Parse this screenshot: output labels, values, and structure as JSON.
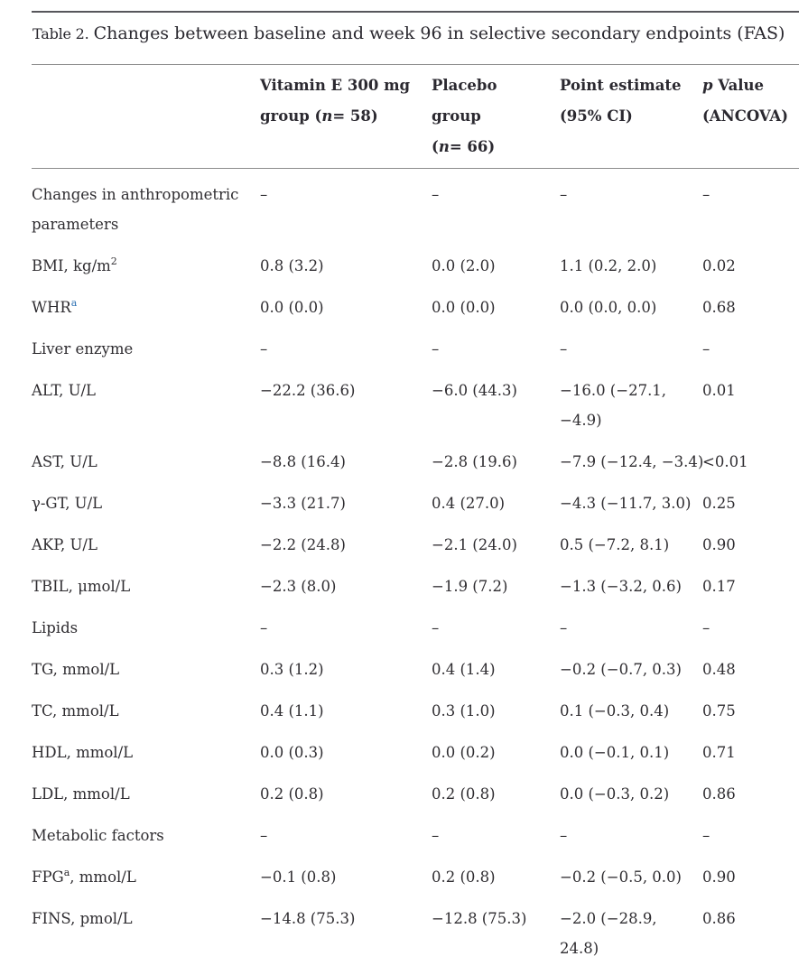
{
  "colors": {
    "text": "#2f2d31",
    "accent_link": "#2d72b4",
    "rule_dark": "#57565b",
    "rule_light": "#8b8b8b"
  },
  "caption": {
    "label": "Table 2.",
    "text": "Changes between baseline and week 96 in selective secondary endpoints (FAS)"
  },
  "header": {
    "columns": [
      {
        "parts": []
      },
      {
        "parts": [
          {
            "text": "Vitamin E 300 mg"
          },
          {
            "br": true
          },
          {
            "text": "group ("
          },
          {
            "text": "n",
            "i": true
          },
          {
            "text": "= 58)"
          }
        ]
      },
      {
        "parts": [
          {
            "text": "Placebo group"
          },
          {
            "br": true
          },
          {
            "text": "("
          },
          {
            "text": "n",
            "i": true
          },
          {
            "text": "= 66)"
          }
        ]
      },
      {
        "parts": [
          {
            "text": "Point estimate"
          },
          {
            "br": true
          },
          {
            "text": "(95% CI)"
          }
        ]
      },
      {
        "parts": [
          {
            "text": "p",
            "i": true
          },
          {
            "text": " Value"
          },
          {
            "br": true
          },
          {
            "text": "(ANCOVA)"
          }
        ]
      }
    ]
  },
  "rows": [
    {
      "label": [
        {
          "text": "Changes in anthropometric"
        },
        {
          "br": true
        },
        {
          "text": "parameters"
        }
      ],
      "cells": [
        "–",
        "–",
        "–",
        "–"
      ]
    },
    {
      "label": [
        {
          "text": "BMI, kg/m"
        },
        {
          "text": "2",
          "sup": true
        }
      ],
      "cells": [
        "0.8 (3.2)",
        "0.0 (2.0)",
        "1.1 (0.2, 2.0)",
        "0.02"
      ]
    },
    {
      "label": [
        {
          "text": "WHR"
        },
        {
          "text": "a",
          "sup": true,
          "accent": true
        }
      ],
      "cells": [
        "0.0 (0.0)",
        "0.0 (0.0)",
        "0.0 (0.0, 0.0)",
        "0.68"
      ]
    },
    {
      "label": [
        {
          "text": "Liver enzyme"
        }
      ],
      "cells": [
        "–",
        "–",
        "–",
        "–"
      ]
    },
    {
      "label": [
        {
          "text": "ALT, U/L"
        }
      ],
      "cells": [
        "−22.2 (36.6)",
        "−6.0 (44.3)",
        [
          "−16.0 (−27.1,",
          "−4.9)"
        ],
        "0.01"
      ]
    },
    {
      "label": [
        {
          "text": "AST, U/L"
        }
      ],
      "cells": [
        "−8.8 (16.4)",
        "−2.8 (19.6)",
        "−7.9 (−12.4, −3.4)",
        "<0.01"
      ]
    },
    {
      "label": [
        {
          "text": "γ-GT, U/L"
        }
      ],
      "cells": [
        "−3.3 (21.7)",
        "0.4 (27.0)",
        "−4.3 (−11.7, 3.0)",
        "0.25"
      ]
    },
    {
      "label": [
        {
          "text": "AKP, U/L"
        }
      ],
      "cells": [
        "−2.2 (24.8)",
        "−2.1 (24.0)",
        "0.5 (−7.2, 8.1)",
        "0.90"
      ]
    },
    {
      "label": [
        {
          "text": "TBIL, μmol/L"
        }
      ],
      "cells": [
        "−2.3 (8.0)",
        "−1.9 (7.2)",
        "−1.3 (−3.2, 0.6)",
        "0.17"
      ]
    },
    {
      "label": [
        {
          "text": "Lipids"
        }
      ],
      "cells": [
        "–",
        "–",
        "–",
        "–"
      ]
    },
    {
      "label": [
        {
          "text": "TG, mmol/L"
        }
      ],
      "cells": [
        "0.3 (1.2)",
        "0.4 (1.4)",
        "−0.2 (−0.7, 0.3)",
        "0.48"
      ]
    },
    {
      "label": [
        {
          "text": "TC, mmol/L"
        }
      ],
      "cells": [
        "0.4 (1.1)",
        "0.3 (1.0)",
        "0.1 (−0.3, 0.4)",
        "0.75"
      ]
    },
    {
      "label": [
        {
          "text": "HDL, mmol/L"
        }
      ],
      "cells": [
        "0.0 (0.3)",
        "0.0 (0.2)",
        "0.0 (−0.1, 0.1)",
        "0.71"
      ]
    },
    {
      "label": [
        {
          "text": "LDL, mmol/L"
        }
      ],
      "cells": [
        "0.2 (0.8)",
        "0.2 (0.8)",
        "0.0 (−0.3, 0.2)",
        "0.86"
      ]
    },
    {
      "label": [
        {
          "text": "Metabolic factors"
        }
      ],
      "cells": [
        "–",
        "–",
        "–",
        "–"
      ]
    },
    {
      "label": [
        {
          "text": "FPG"
        },
        {
          "text": "a",
          "sup": true
        },
        {
          "text": ", mmol/L"
        }
      ],
      "cells": [
        "−0.1 (0.8)",
        "0.2 (0.8)",
        "−0.2 (−0.5, 0.0)",
        "0.90"
      ]
    },
    {
      "label": [
        {
          "text": "FINS, pmol/L"
        }
      ],
      "cells": [
        "−14.8 (75.3)",
        "−12.8 (75.3)",
        [
          "−2.0 (−28.9,",
          "24.8)"
        ],
        "0.86"
      ]
    }
  ]
}
